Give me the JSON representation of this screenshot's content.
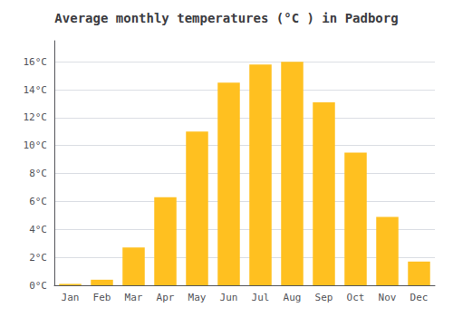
{
  "chart_data": {
    "type": "bar",
    "title": "Average monthly temperatures (°C ) in Padborg",
    "categories": [
      "Jan",
      "Feb",
      "Mar",
      "Apr",
      "May",
      "Jun",
      "Jul",
      "Aug",
      "Sep",
      "Oct",
      "Nov",
      "Dec"
    ],
    "values": [
      0.1,
      0.4,
      2.7,
      6.3,
      11.0,
      14.5,
      15.8,
      16.0,
      13.1,
      9.5,
      4.9,
      1.7
    ],
    "color": "#FFC020",
    "ylim": [
      0,
      17.5
    ],
    "yticks": [
      {
        "value": 0,
        "label": "0°C"
      },
      {
        "value": 2,
        "label": "2°C"
      },
      {
        "value": 4,
        "label": "4°C"
      },
      {
        "value": 6,
        "label": "6°C"
      },
      {
        "value": 8,
        "label": "8°C"
      },
      {
        "value": 10,
        "label": "10°C"
      },
      {
        "value": 12,
        "label": "12°C"
      },
      {
        "value": 14,
        "label": "14°C"
      },
      {
        "value": 16,
        "label": "16°C"
      }
    ],
    "grid": true
  }
}
